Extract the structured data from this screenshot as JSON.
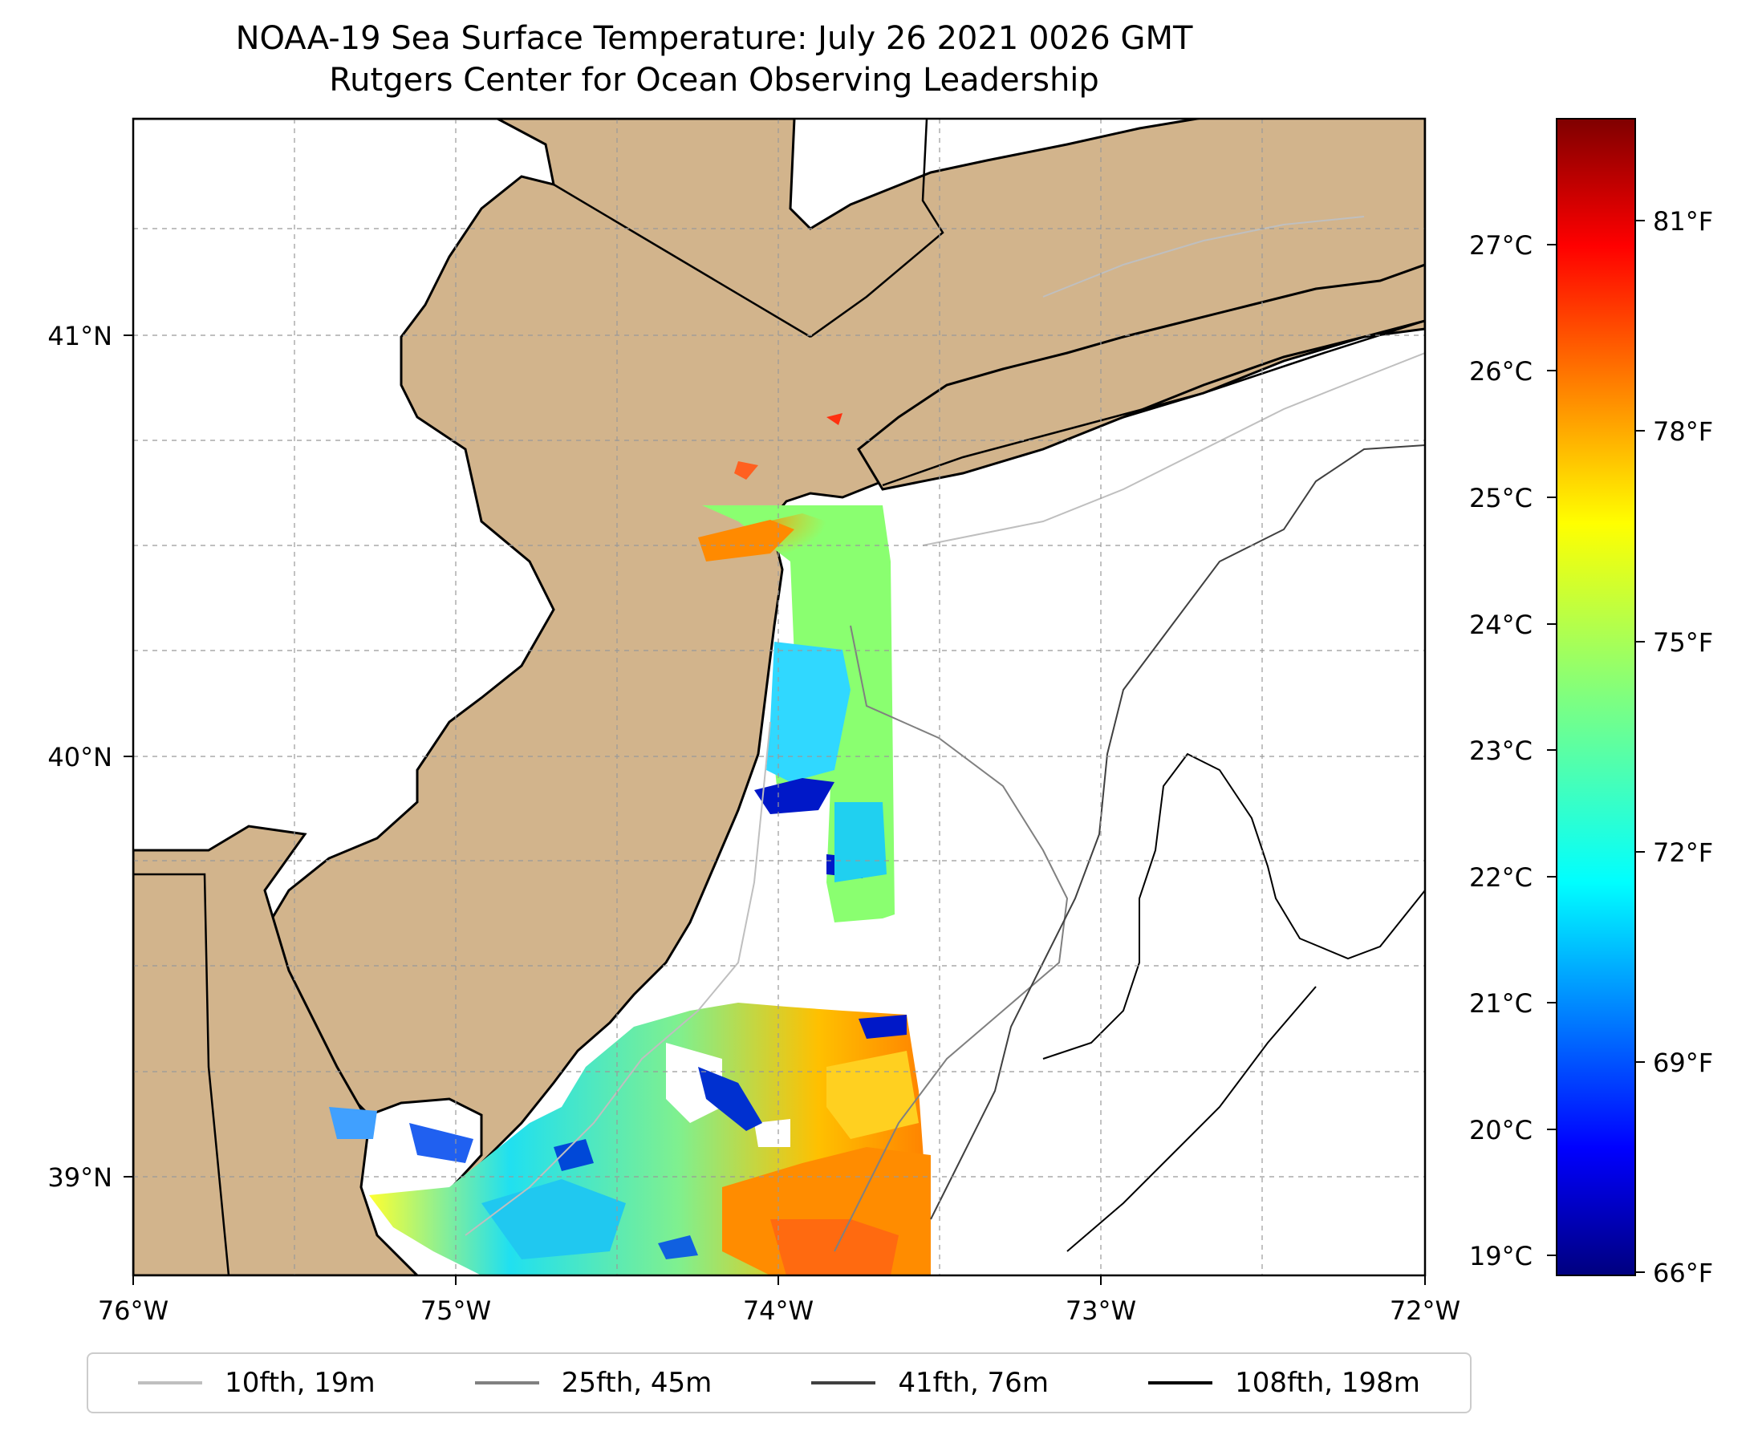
{
  "title": {
    "line1": "NOAA-19 Sea Surface Temperature: July 26 2021 0026 GMT",
    "line2": "Rutgers Center for Ocean Observing Leadership"
  },
  "map": {
    "lon_range": [
      -76,
      -72
    ],
    "lat_range": [
      38.75,
      41.5
    ],
    "lon_ticks": [
      "76°W",
      "75°W",
      "74°W",
      "73°W",
      "72°W"
    ],
    "lat_ticks": [
      "41°N",
      "40°N",
      "39°N"
    ],
    "land_color": "#D2B48C",
    "grid": "dashed"
  },
  "colorbar": {
    "colormap": "jet",
    "celsius_ticks": [
      "27°C",
      "26°C",
      "25°C",
      "24°C",
      "23°C",
      "22°C",
      "21°C",
      "20°C",
      "19°C"
    ],
    "fahrenheit_ticks": [
      "81°F",
      "78°F",
      "75°F",
      "72°F",
      "69°F",
      "66°F"
    ],
    "celsius_range": [
      18.9,
      28.0
    ]
  },
  "legend": {
    "items": [
      {
        "label": "10fth, 19m",
        "color": "#bfbfbf"
      },
      {
        "label": "25fth, 45m",
        "color": "#808080"
      },
      {
        "label": "41fth, 76m",
        "color": "#404040"
      },
      {
        "label": "108fth, 198m",
        "color": "#000000"
      }
    ]
  }
}
